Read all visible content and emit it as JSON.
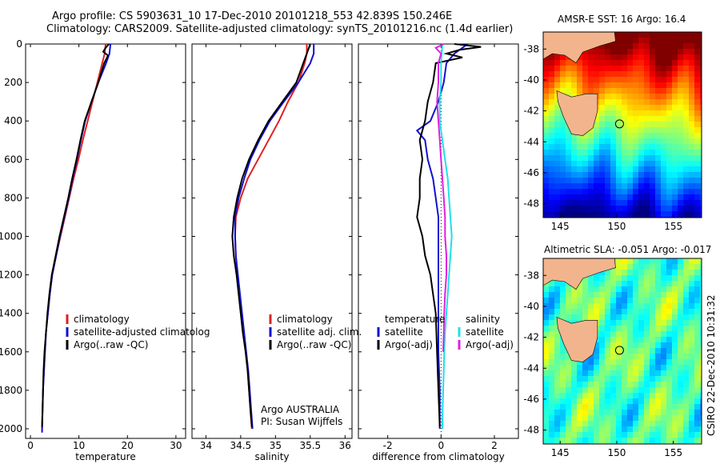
{
  "header": {
    "line1": "Argo profile: CS 5903631_10 17-Dec-2010 20101218_553 42.839S 150.246E",
    "line2": "Climatology: CARS2009. Satellite-adjusted climatology: synTS_20101216.nc (1.4d earlier)"
  },
  "side_stamp": "CSIRO 22-Dec-2010 10:31:32",
  "colors": {
    "climatology": "#e02020",
    "satellite": "#1010d0",
    "argo": "#000000",
    "satellite_salinity_diff": "#20e0e8",
    "argo_salinity_diff": "#e020e0",
    "land": "#f2b48c"
  },
  "chart_data": [
    {
      "id": "temperature",
      "type": "line",
      "xlabel": "temperature",
      "ylabel": "",
      "xlim": [
        -1,
        32
      ],
      "ylim": [
        2050,
        0
      ],
      "x_ticks": [
        0,
        10,
        20,
        30
      ],
      "y_ticks": [
        0,
        200,
        400,
        600,
        800,
        1000,
        1200,
        1400,
        1600,
        1800,
        2000
      ],
      "legend": [
        "climatology",
        "satellite-adjusted climatolog",
        "Argo(..raw -QC)"
      ],
      "series": [
        {
          "name": "climatology",
          "color": "#e02020",
          "points": [
            [
              15.5,
              0
            ],
            [
              15.3,
              50
            ],
            [
              14.8,
              100
            ],
            [
              13.8,
              200
            ],
            [
              12.8,
              300
            ],
            [
              11.8,
              400
            ],
            [
              10.8,
              500
            ],
            [
              9.9,
              600
            ],
            [
              8.9,
              700
            ],
            [
              8.0,
              800
            ],
            [
              7.1,
              900
            ],
            [
              6.2,
              1000
            ],
            [
              5.3,
              1100
            ],
            [
              4.5,
              1200
            ],
            [
              4.0,
              1300
            ],
            [
              3.6,
              1400
            ],
            [
              3.2,
              1500
            ],
            [
              3.0,
              1600
            ],
            [
              2.8,
              1700
            ],
            [
              2.6,
              1800
            ],
            [
              2.5,
              1900
            ],
            [
              2.4,
              2000
            ]
          ]
        },
        {
          "name": "satellite-adjusted climatolog",
          "color": "#1010d0",
          "points": [
            [
              16.5,
              0
            ],
            [
              16.3,
              50
            ],
            [
              15.6,
              100
            ],
            [
              14.0,
              200
            ],
            [
              12.6,
              300
            ],
            [
              11.3,
              400
            ],
            [
              10.4,
              500
            ],
            [
              9.6,
              600
            ],
            [
              8.7,
              700
            ],
            [
              7.9,
              800
            ],
            [
              7.0,
              900
            ],
            [
              6.1,
              1000
            ],
            [
              5.3,
              1100
            ],
            [
              4.5,
              1200
            ],
            [
              4.0,
              1300
            ],
            [
              3.6,
              1400
            ],
            [
              3.2,
              1500
            ],
            [
              3.0,
              1600
            ],
            [
              2.8,
              1700
            ],
            [
              2.6,
              1800
            ],
            [
              2.5,
              1900
            ],
            [
              2.4,
              2000
            ],
            [
              2.4,
              2020
            ]
          ]
        },
        {
          "name": "Argo(..raw -QC)",
          "color": "#000000",
          "points": [
            [
              16.2,
              0
            ],
            [
              15.5,
              20
            ],
            [
              15.0,
              40
            ],
            [
              16.0,
              60
            ],
            [
              15.2,
              100
            ],
            [
              14.0,
              200
            ],
            [
              12.6,
              300
            ],
            [
              11.2,
              400
            ],
            [
              10.3,
              500
            ],
            [
              9.5,
              600
            ],
            [
              8.6,
              700
            ],
            [
              7.8,
              800
            ],
            [
              6.9,
              900
            ],
            [
              6.0,
              1000
            ],
            [
              5.2,
              1100
            ],
            [
              4.4,
              1200
            ],
            [
              3.9,
              1300
            ],
            [
              3.5,
              1400
            ],
            [
              3.2,
              1500
            ],
            [
              2.9,
              1600
            ],
            [
              2.7,
              1700
            ],
            [
              2.6,
              1800
            ],
            [
              2.5,
              1900
            ],
            [
              2.4,
              1990
            ]
          ]
        }
      ]
    },
    {
      "id": "salinity",
      "type": "line",
      "xlabel": "salinity",
      "ylabel": "",
      "xlim": [
        33.8,
        36.1
      ],
      "ylim": [
        2050,
        0
      ],
      "x_ticks": [
        34,
        34.5,
        35,
        35.5,
        36
      ],
      "x_tick_labels": [
        "34",
        "34.5",
        "35",
        "35.5",
        "36"
      ],
      "legend": [
        "climatology",
        "satellite adj. clim.",
        "Argo(..raw -QC)"
      ],
      "annotation": [
        "Argo AUSTRALIA",
        "PI: Susan Wijffels"
      ],
      "series": [
        {
          "name": "climatology",
          "color": "#e02020",
          "points": [
            [
              35.45,
              0
            ],
            [
              35.45,
              50
            ],
            [
              35.42,
              100
            ],
            [
              35.33,
              200
            ],
            [
              35.18,
              300
            ],
            [
              35.05,
              400
            ],
            [
              34.9,
              500
            ],
            [
              34.75,
              600
            ],
            [
              34.6,
              700
            ],
            [
              34.5,
              800
            ],
            [
              34.43,
              900
            ],
            [
              34.42,
              1000
            ],
            [
              34.43,
              1100
            ],
            [
              34.45,
              1200
            ],
            [
              34.48,
              1300
            ],
            [
              34.51,
              1400
            ],
            [
              34.54,
              1500
            ],
            [
              34.57,
              1600
            ],
            [
              34.6,
              1700
            ],
            [
              34.62,
              1800
            ],
            [
              34.64,
              1900
            ],
            [
              34.66,
              2000
            ]
          ]
        },
        {
          "name": "satellite adj. clim.",
          "color": "#1010d0",
          "points": [
            [
              35.55,
              0
            ],
            [
              35.55,
              50
            ],
            [
              35.5,
              100
            ],
            [
              35.33,
              200
            ],
            [
              35.12,
              300
            ],
            [
              34.92,
              400
            ],
            [
              34.77,
              500
            ],
            [
              34.64,
              600
            ],
            [
              34.55,
              700
            ],
            [
              34.47,
              800
            ],
            [
              34.42,
              900
            ],
            [
              34.42,
              1000
            ],
            [
              34.43,
              1100
            ],
            [
              34.46,
              1200
            ],
            [
              34.49,
              1300
            ],
            [
              34.52,
              1400
            ],
            [
              34.55,
              1500
            ],
            [
              34.58,
              1600
            ],
            [
              34.61,
              1700
            ],
            [
              34.63,
              1800
            ],
            [
              34.65,
              1900
            ],
            [
              34.67,
              2000
            ]
          ]
        },
        {
          "name": "Argo(..raw -QC)",
          "color": "#000000",
          "points": [
            [
              35.5,
              0
            ],
            [
              35.45,
              50
            ],
            [
              35.4,
              100
            ],
            [
              35.3,
              200
            ],
            [
              35.1,
              300
            ],
            [
              34.9,
              400
            ],
            [
              34.75,
              500
            ],
            [
              34.62,
              600
            ],
            [
              34.52,
              700
            ],
            [
              34.45,
              800
            ],
            [
              34.4,
              900
            ],
            [
              34.38,
              1000
            ],
            [
              34.4,
              1100
            ],
            [
              34.44,
              1200
            ],
            [
              34.47,
              1300
            ],
            [
              34.5,
              1400
            ],
            [
              34.53,
              1500
            ],
            [
              34.57,
              1600
            ],
            [
              34.6,
              1700
            ],
            [
              34.62,
              1800
            ],
            [
              34.64,
              1900
            ],
            [
              34.66,
              1990
            ]
          ]
        }
      ]
    },
    {
      "id": "difference",
      "type": "line",
      "xlabel": "difference from climatology",
      "ylabel": "",
      "xlim": [
        -3.1,
        2.9
      ],
      "ylim": [
        2050,
        0
      ],
      "x_ticks": [
        -2,
        0,
        2
      ],
      "legend_left": [
        "temperature",
        "satellite",
        "Argo(-adj)"
      ],
      "legend_right": [
        "salinity",
        "satellite",
        "Argo(-adj)"
      ],
      "series": [
        {
          "name": "temperature satellite",
          "color": "#1010d0",
          "points": [
            [
              1.0,
              0
            ],
            [
              0.5,
              50
            ],
            [
              0.2,
              100
            ],
            [
              0.1,
              200
            ],
            [
              -0.1,
              300
            ],
            [
              -0.4,
              400
            ],
            [
              -0.9,
              450
            ],
            [
              -0.6,
              500
            ],
            [
              -0.5,
              600
            ],
            [
              -0.3,
              700
            ],
            [
              -0.2,
              800
            ],
            [
              -0.1,
              900
            ],
            [
              -0.1,
              1000
            ],
            [
              -0.1,
              1200
            ],
            [
              -0.1,
              1400
            ],
            [
              -0.1,
              1600
            ],
            [
              -0.05,
              1800
            ],
            [
              -0.05,
              2000
            ]
          ]
        },
        {
          "name": "temperature Argo(-adj)",
          "color": "#000000",
          "points": [
            [
              0.5,
              0
            ],
            [
              1.5,
              15
            ],
            [
              0.7,
              30
            ],
            [
              0.2,
              50
            ],
            [
              0.8,
              70
            ],
            [
              -0.2,
              100
            ],
            [
              -0.3,
              200
            ],
            [
              -0.5,
              300
            ],
            [
              -0.6,
              400
            ],
            [
              -0.8,
              500
            ],
            [
              -0.7,
              600
            ],
            [
              -0.8,
              700
            ],
            [
              -0.8,
              800
            ],
            [
              -0.9,
              900
            ],
            [
              -0.7,
              1000
            ],
            [
              -0.6,
              1100
            ],
            [
              -0.4,
              1200
            ],
            [
              -0.3,
              1300
            ],
            [
              -0.2,
              1400
            ],
            [
              -0.15,
              1600
            ],
            [
              -0.1,
              1800
            ],
            [
              -0.05,
              1990
            ]
          ]
        },
        {
          "name": "salinity satellite",
          "color": "#20e0e8",
          "points": [
            [
              0.05,
              0
            ],
            [
              0.0,
              100
            ],
            [
              0.0,
              200
            ],
            [
              -0.05,
              300
            ],
            [
              -0.05,
              400
            ],
            [
              0.05,
              500
            ],
            [
              0.15,
              600
            ],
            [
              0.25,
              700
            ],
            [
              0.3,
              800
            ],
            [
              0.35,
              900
            ],
            [
              0.4,
              1000
            ],
            [
              0.35,
              1100
            ],
            [
              0.3,
              1200
            ],
            [
              0.25,
              1300
            ],
            [
              0.2,
              1400
            ],
            [
              0.15,
              1500
            ],
            [
              0.12,
              1600
            ],
            [
              0.1,
              1700
            ],
            [
              0.08,
              1800
            ],
            [
              0.06,
              1900
            ],
            [
              0.05,
              2000
            ]
          ]
        },
        {
          "name": "salinity Argo(-adj)",
          "color": "#e020e0",
          "points": [
            [
              0.1,
              0
            ],
            [
              -0.2,
              20
            ],
            [
              0.0,
              50
            ],
            [
              -0.1,
              100
            ],
            [
              -0.1,
              200
            ],
            [
              -0.15,
              300
            ],
            [
              -0.1,
              400
            ],
            [
              -0.05,
              500
            ],
            [
              0.0,
              600
            ],
            [
              0.05,
              700
            ],
            [
              0.1,
              800
            ],
            [
              0.15,
              900
            ],
            [
              0.15,
              1000
            ],
            [
              0.2,
              1100
            ],
            [
              0.2,
              1200
            ],
            [
              0.15,
              1300
            ],
            [
              0.12,
              1400
            ],
            [
              0.1,
              1500
            ],
            [
              0.08,
              1600
            ]
          ]
        }
      ]
    },
    {
      "id": "sst_map",
      "type": "heatmap",
      "title": "AMSR-E SST: 16 Argo: 16.4",
      "xlim": [
        143.5,
        157.5
      ],
      "ylim": [
        -48.9,
        -36.9
      ],
      "x_ticks": [
        145,
        150,
        155
      ],
      "y_ticks": [
        -38,
        -40,
        -42,
        -44,
        -46,
        -48
      ],
      "argo_position": [
        150.246,
        -42.839
      ]
    },
    {
      "id": "sla_map",
      "type": "heatmap",
      "title": "Altimetric SLA: -0.051 Argo: -0.017",
      "xlim": [
        143.5,
        157.5
      ],
      "ylim": [
        -48.9,
        -36.9
      ],
      "x_ticks": [
        145,
        150,
        155
      ],
      "y_ticks": [
        -38,
        -40,
        -42,
        -44,
        -46,
        -48
      ],
      "argo_position": [
        150.246,
        -42.839
      ]
    }
  ]
}
